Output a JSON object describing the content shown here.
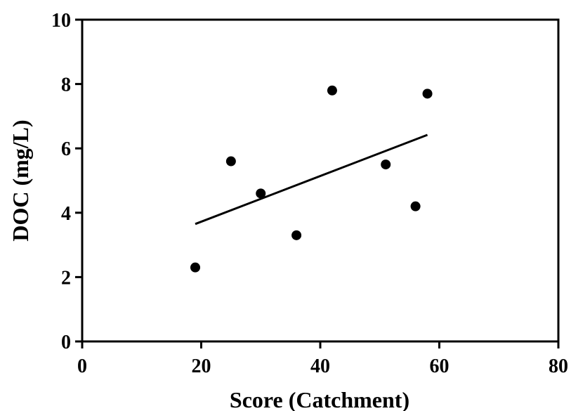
{
  "chart_data": {
    "type": "scatter",
    "xlabel": "Score (Catchment)",
    "ylabel": "DOC (mg/L)",
    "xlim": [
      0,
      80
    ],
    "ylim": [
      0,
      10
    ],
    "x_ticks": [
      "0",
      "20",
      "40",
      "60",
      "80"
    ],
    "y_ticks": [
      "0",
      "2",
      "4",
      "6",
      "8",
      "10"
    ],
    "grid": false,
    "points": [
      {
        "x": 19,
        "y": 2.3
      },
      {
        "x": 25,
        "y": 5.6
      },
      {
        "x": 30,
        "y": 4.6
      },
      {
        "x": 36,
        "y": 3.3
      },
      {
        "x": 42,
        "y": 7.8
      },
      {
        "x": 51,
        "y": 5.5
      },
      {
        "x": 56,
        "y": 4.2
      },
      {
        "x": 58,
        "y": 7.7
      }
    ],
    "trendline": {
      "type": "linear",
      "x_start": 19,
      "y_start": 3.65,
      "x_end": 58,
      "y_end": 6.42
    },
    "colors": {
      "points": "#000000",
      "line": "#000000",
      "axes": "#000000"
    }
  }
}
